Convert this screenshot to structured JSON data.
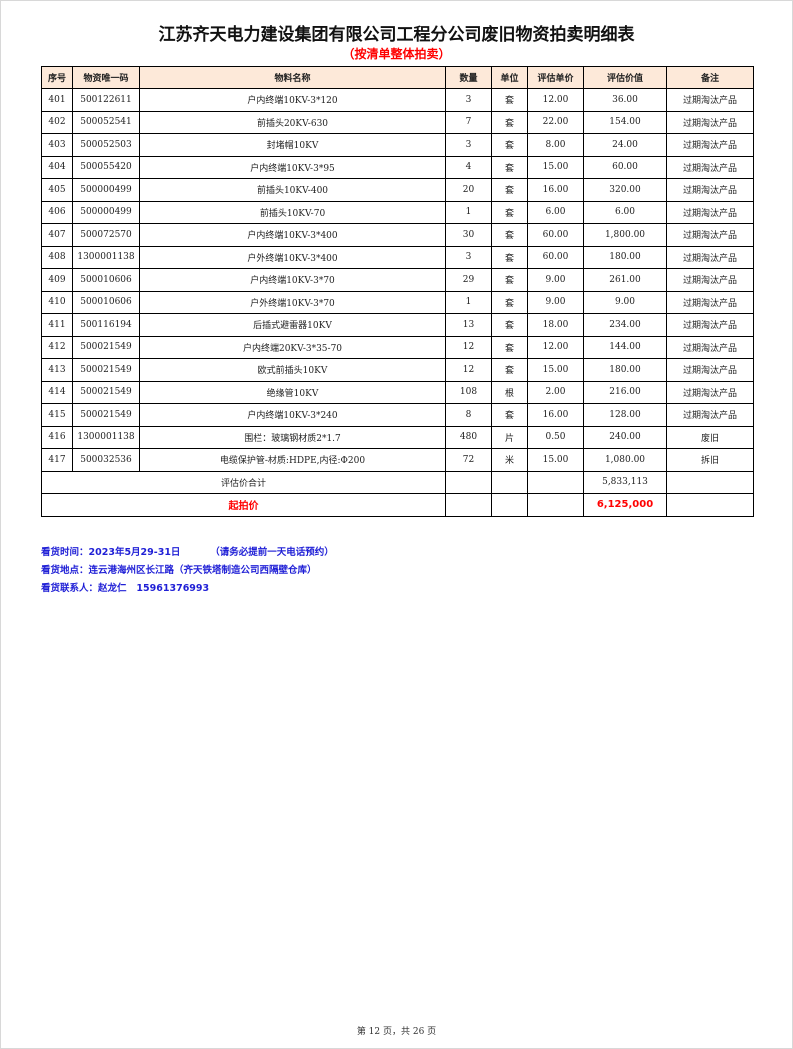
{
  "title": "江苏齐天电力建设集团有限公司工程分公司废旧物资拍卖明细表",
  "subtitle": "（按清单整体拍卖）",
  "table": {
    "headers": [
      "序号",
      "物资唯一码",
      "物料名称",
      "数量",
      "单位",
      "评估单价",
      "评估价值",
      "备注"
    ],
    "rows": [
      [
        "401",
        "500122611",
        "户内终端10KV-3*120",
        "3",
        "套",
        "12.00",
        "36.00",
        "过期淘汰产品"
      ],
      [
        "402",
        "500052541",
        "前插头20KV-630",
        "7",
        "套",
        "22.00",
        "154.00",
        "过期淘汰产品"
      ],
      [
        "403",
        "500052503",
        "封堵帽10KV",
        "3",
        "套",
        "8.00",
        "24.00",
        "过期淘汰产品"
      ],
      [
        "404",
        "500055420",
        "户内终端10KV-3*95",
        "4",
        "套",
        "15.00",
        "60.00",
        "过期淘汰产品"
      ],
      [
        "405",
        "500000499",
        "前插头10KV-400",
        "20",
        "套",
        "16.00",
        "320.00",
        "过期淘汰产品"
      ],
      [
        "406",
        "500000499",
        "前插头10KV-70",
        "1",
        "套",
        "6.00",
        "6.00",
        "过期淘汰产品"
      ],
      [
        "407",
        "500072570",
        "户内终端10KV-3*400",
        "30",
        "套",
        "60.00",
        "1,800.00",
        "过期淘汰产品"
      ],
      [
        "408",
        "1300001138",
        "户外终端10KV-3*400",
        "3",
        "套",
        "60.00",
        "180.00",
        "过期淘汰产品"
      ],
      [
        "409",
        "500010606",
        "户内终端10KV-3*70",
        "29",
        "套",
        "9.00",
        "261.00",
        "过期淘汰产品"
      ],
      [
        "410",
        "500010606",
        "户外终端10KV-3*70",
        "1",
        "套",
        "9.00",
        "9.00",
        "过期淘汰产品"
      ],
      [
        "411",
        "500116194",
        "后插式避雷器10KV",
        "13",
        "套",
        "18.00",
        "234.00",
        "过期淘汰产品"
      ],
      [
        "412",
        "500021549",
        "户内终端20KV-3*35-70",
        "12",
        "套",
        "12.00",
        "144.00",
        "过期淘汰产品"
      ],
      [
        "413",
        "500021549",
        "欧式前插头10KV",
        "12",
        "套",
        "15.00",
        "180.00",
        "过期淘汰产品"
      ],
      [
        "414",
        "500021549",
        "绝缘管10KV",
        "108",
        "根",
        "2.00",
        "216.00",
        "过期淘汰产品"
      ],
      [
        "415",
        "500021549",
        "户内终端10KV-3*240",
        "8",
        "套",
        "16.00",
        "128.00",
        "过期淘汰产品"
      ],
      [
        "416",
        "1300001138",
        "围栏：玻璃钢材质2*1.7",
        "480",
        "片",
        "0.50",
        "240.00",
        "废旧"
      ],
      [
        "417",
        "500032536",
        "电缆保护管-材质:HDPE,内径:Φ200",
        "72",
        "米",
        "15.00",
        "1,080.00",
        "拆旧"
      ]
    ],
    "total_label": "评估价合计",
    "total_value": "5,833,113",
    "start_price_label": "起拍价",
    "start_price_value": "6,125,000"
  },
  "info": {
    "viewing_time": "看货时间：2023年5月29-31日         （请务必提前一天电话预约）",
    "viewing_location": "看货地点：连云港海州区长江路（齐天铁塔制造公司西隔壁仓库）",
    "contact": "看货联系人：赵龙仁   15961376993"
  },
  "footer": "第 12 页，共 26 页"
}
